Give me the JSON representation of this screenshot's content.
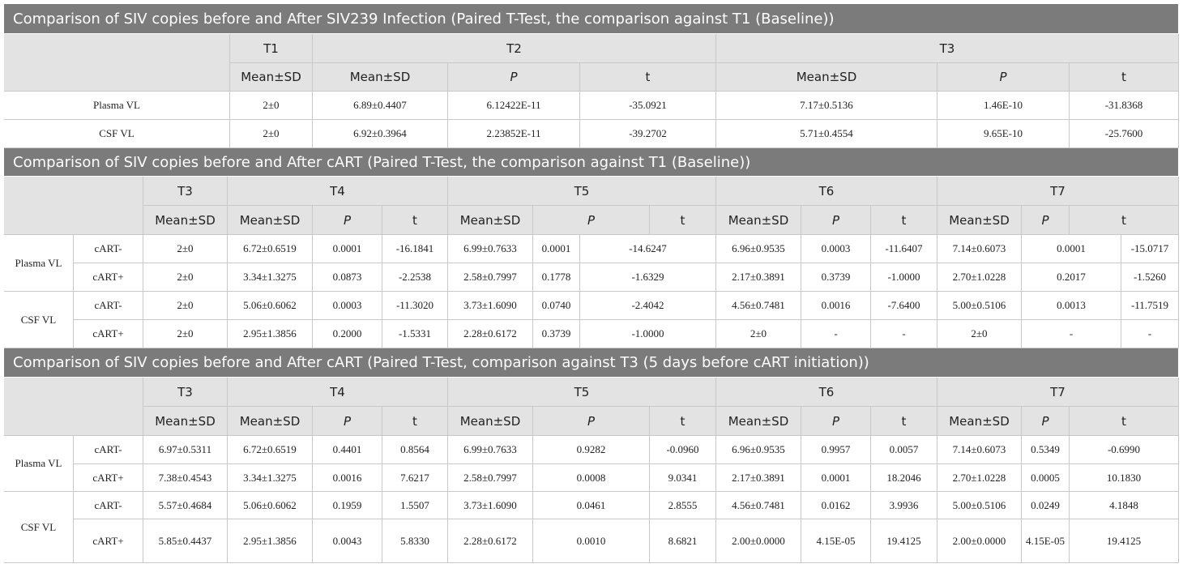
{
  "sections": [
    {
      "title": "Comparison of SIV copies before and After SIV239 Infection (Paired T-Test, the comparison against T1 (Baseline))",
      "header": {
        "groups": [
          "T1",
          "T2",
          "T3"
        ],
        "columns": [
          "Mean±SD",
          "Mean±SD",
          "P",
          "t",
          "Mean±SD",
          "P",
          "t"
        ]
      },
      "groups": [
        {
          "label": "Plasma VL",
          "rows": [
            {
              "cells": [
                "2±0",
                "6.89±0.4407",
                "6.12422E-11",
                "-35.0921",
                "7.17±0.5136",
                "1.46E-10",
                "-31.8368"
              ]
            }
          ]
        },
        {
          "label": "CSF VL",
          "rows": [
            {
              "cells": [
                "2±0",
                "6.92±0.3964",
                "2.23852E-11",
                "-39.2702",
                "5.71±0.4554",
                "9.65E-10",
                "-25.7600"
              ]
            }
          ]
        }
      ]
    },
    {
      "title": "Comparison of SIV copies before and After cART (Paired T-Test, the comparison against T1 (Baseline))",
      "header": {
        "groups": [
          "T3",
          "T4",
          "T5",
          "T6",
          "T7"
        ],
        "columns": [
          "Mean±SD",
          "Mean±SD",
          "P",
          "t",
          "Mean±SD",
          "P",
          "t",
          "Mean±SD",
          "P",
          "t",
          "Mean±SD",
          "P",
          "t"
        ]
      },
      "groups": [
        {
          "label": "Plasma VL",
          "rows": [
            {
              "label": "cART-",
              "cells": [
                "2±0",
                "6.72±0.6519",
                "0.0001",
                "-16.1841",
                "6.99±0.7633",
                "0.0001",
                "-14.6247",
                "6.96±0.9535",
                "0.0003",
                "-11.6407",
                "7.14±0.6073",
                "0.0001",
                "-15.0717"
              ]
            },
            {
              "label": "cART+",
              "cells": [
                "2±0",
                "3.34±1.3275",
                "0.0873",
                "-2.2538",
                "2.58±0.7997",
                "0.1778",
                "-1.6329",
                "2.17±0.3891",
                "0.3739",
                "-1.0000",
                "2.70±1.0228",
                "0.2017",
                "-1.5260"
              ]
            }
          ]
        },
        {
          "label": "CSF VL",
          "rows": [
            {
              "label": "cART-",
              "cells": [
                "2±0",
                "5.06±0.6062",
                "0.0003",
                "-11.3020",
                "3.73±1.6090",
                "0.0740",
                "-2.4042",
                "4.56±0.7481",
                "0.0016",
                "-7.6400",
                "5.00±0.5106",
                "0.0013",
                "-11.7519"
              ]
            },
            {
              "label": "cART+",
              "cells": [
                "2±0",
                "2.95±1.3856",
                "0.2000",
                "-1.5331",
                "2.28±0.6172",
                "0.3739",
                "-1.0000",
                "2±0",
                "-",
                "-",
                "2±0",
                "-",
                "-"
              ]
            }
          ]
        }
      ]
    },
    {
      "title": "Comparison of SIV copies before and After cART (Paired T-Test, comparison against T3 (5 days before cART initiation))",
      "header": {
        "groups": [
          "T3",
          "T4",
          "T5",
          "T6",
          "T7"
        ],
        "columns": [
          "Mean±SD",
          "Mean±SD",
          "P",
          "t",
          "Mean±SD",
          "P",
          "t",
          "Mean±SD",
          "P",
          "t",
          "Mean±SD",
          "P",
          "t"
        ]
      },
      "groups": [
        {
          "label": "Plasma VL",
          "rows": [
            {
              "label": "cART-",
              "cells": [
                "6.97±0.5311",
                "6.72±0.6519",
                "0.4401",
                "0.8564",
                "6.99±0.7633",
                "0.9282",
                "-0.0960",
                "6.96±0.9535",
                "0.9957",
                "0.0057",
                "7.14±0.6073",
                "0.5349",
                "-0.6990"
              ]
            },
            {
              "label": "cART+",
              "cells": [
                "7.38±0.4543",
                "3.34±1.3275",
                "0.0016",
                "7.6217",
                "2.58±0.7997",
                "0.0008",
                "9.0341",
                "2.17±0.3891",
                "0.0001",
                "18.2046",
                "2.70±1.0228",
                "0.0005",
                "10.1830"
              ]
            }
          ]
        },
        {
          "label": "CSF VL",
          "rows": [
            {
              "label": "cART-",
              "cells": [
                "5.57±0.4684",
                "5.06±0.6062",
                "0.1959",
                "1.5507",
                "3.73±1.6090",
                "0.0461",
                "2.8555",
                "4.56±0.7481",
                "0.0162",
                "3.9936",
                "5.00±0.5106",
                "0.0249",
                "4.1848"
              ]
            },
            {
              "label": "cART+",
              "cells": [
                "5.85±0.4437",
                "2.95±1.3856",
                "0.0043",
                "5.8330",
                "2.28±0.6172",
                "0.0010",
                "8.6821",
                "2.00±0.0000",
                "4.15E-05",
                "19.4125",
                "2.00±0.0000",
                "4.15E-05",
                "19.4125"
              ]
            }
          ]
        }
      ]
    }
  ]
}
